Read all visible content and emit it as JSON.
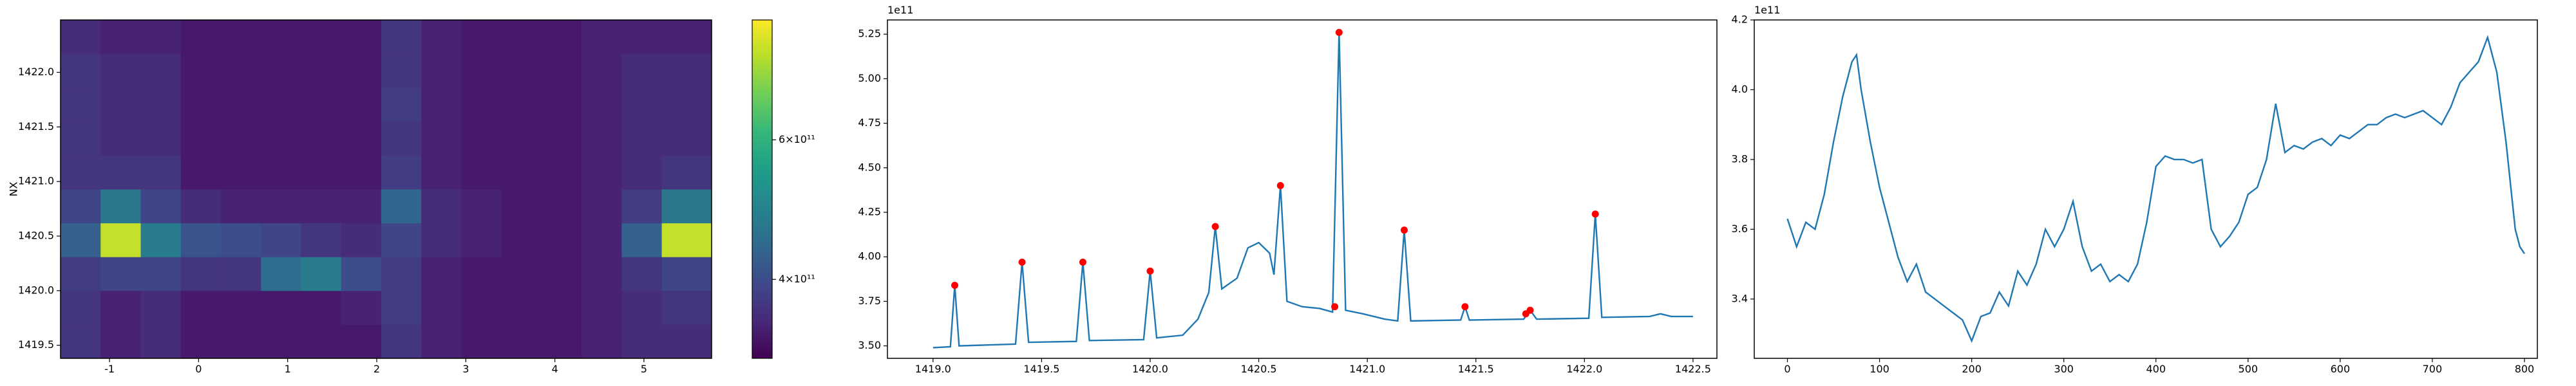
{
  "chart_data": [
    {
      "type": "heatmap",
      "ylabel": "NX",
      "colormap": "viridis",
      "x_edges": [
        -1.55,
        -1.1,
        -0.65,
        -0.2,
        0.25,
        0.7,
        1.15,
        1.6,
        2.05,
        2.5,
        2.95,
        3.4,
        3.85,
        4.3,
        4.75,
        5.2,
        5.76
      ],
      "y_edges": [
        1419.38,
        1419.69,
        1420.0,
        1420.31,
        1420.62,
        1420.93,
        1421.24,
        1421.55,
        1421.86,
        1422.17,
        1422.48
      ],
      "z": [
        [
          370000000000.0,
          350000000000.0,
          360000000000.0,
          340000000000.0,
          340000000000.0,
          340000000000.0,
          340000000000.0,
          340000000000.0,
          370000000000.0,
          350000000000.0,
          340000000000.0,
          340000000000.0,
          340000000000.0,
          350000000000.0,
          360000000000.0,
          360000000000.0
        ],
        [
          370000000000.0,
          350000000000.0,
          360000000000.0,
          340000000000.0,
          340000000000.0,
          340000000000.0,
          340000000000.0,
          350000000000.0,
          380000000000.0,
          350000000000.0,
          340000000000.0,
          340000000000.0,
          340000000000.0,
          350000000000.0,
          360000000000.0,
          370000000000.0
        ],
        [
          380000000000.0,
          390000000000.0,
          390000000000.0,
          370000000000.0,
          370000000000.0,
          450000000000.0,
          480000000000.0,
          400000000000.0,
          380000000000.0,
          350000000000.0,
          340000000000.0,
          340000000000.0,
          340000000000.0,
          350000000000.0,
          370000000000.0,
          390000000000.0
        ],
        [
          430000000000.0,
          780000000000.0,
          480000000000.0,
          410000000000.0,
          400000000000.0,
          390000000000.0,
          370000000000.0,
          360000000000.0,
          390000000000.0,
          360000000000.0,
          350000000000.0,
          340000000000.0,
          340000000000.0,
          350000000000.0,
          430000000000.0,
          780000000000.0
        ],
        [
          390000000000.0,
          470000000000.0,
          390000000000.0,
          360000000000.0,
          350000000000.0,
          350000000000.0,
          350000000000.0,
          350000000000.0,
          440000000000.0,
          360000000000.0,
          350000000000.0,
          340000000000.0,
          340000000000.0,
          350000000000.0,
          380000000000.0,
          470000000000.0
        ],
        [
          370000000000.0,
          370000000000.0,
          370000000000.0,
          340000000000.0,
          340000000000.0,
          340000000000.0,
          340000000000.0,
          340000000000.0,
          380000000000.0,
          350000000000.0,
          340000000000.0,
          340000000000.0,
          340000000000.0,
          350000000000.0,
          360000000000.0,
          370000000000.0
        ],
        [
          370000000000.0,
          360000000000.0,
          360000000000.0,
          340000000000.0,
          340000000000.0,
          340000000000.0,
          340000000000.0,
          340000000000.0,
          370000000000.0,
          350000000000.0,
          340000000000.0,
          340000000000.0,
          340000000000.0,
          350000000000.0,
          360000000000.0,
          360000000000.0
        ],
        [
          370000000000.0,
          360000000000.0,
          360000000000.0,
          340000000000.0,
          340000000000.0,
          340000000000.0,
          340000000000.0,
          340000000000.0,
          380000000000.0,
          350000000000.0,
          340000000000.0,
          340000000000.0,
          340000000000.0,
          350000000000.0,
          360000000000.0,
          360000000000.0
        ],
        [
          370000000000.0,
          360000000000.0,
          360000000000.0,
          340000000000.0,
          340000000000.0,
          340000000000.0,
          340000000000.0,
          340000000000.0,
          370000000000.0,
          350000000000.0,
          340000000000.0,
          340000000000.0,
          340000000000.0,
          350000000000.0,
          360000000000.0,
          360000000000.0
        ],
        [
          360000000000.0,
          350000000000.0,
          350000000000.0,
          340000000000.0,
          340000000000.0,
          340000000000.0,
          340000000000.0,
          340000000000.0,
          370000000000.0,
          350000000000.0,
          340000000000.0,
          340000000000.0,
          340000000000.0,
          350000000000.0,
          350000000000.0,
          350000000000.0
        ]
      ],
      "xlim": [
        -1.55,
        5.76
      ],
      "ylim": [
        1419.38,
        1422.48
      ],
      "xticks": [
        -1,
        0,
        1,
        2,
        3,
        4,
        5
      ],
      "yticks": [
        1419.5,
        {
          "value": 1420.0,
          "label": "1420.0"
        },
        1420.5,
        {
          "value": 1421.0,
          "label": "1421.0"
        },
        1421.5,
        {
          "value": 1422.0,
          "label": "1422.0"
        }
      ],
      "colorbar": {
        "clim": [
          318000000000.0,
          850000000000.0
        ],
        "log": true,
        "ticks": [
          {
            "value": 400000000000.0,
            "label": "4×10¹¹"
          },
          {
            "value": 600000000000.0,
            "label": "6×10¹¹"
          }
        ]
      }
    },
    {
      "type": "line",
      "y_offset_label": "1e11",
      "xlim": [
        1418.79,
        1422.61
      ],
      "ylim": [
        3.43,
        5.33
      ],
      "xticks": [
        {
          "value": 1419.0,
          "label": "1419.0"
        },
        1419.5,
        {
          "value": 1420.0,
          "label": "1420.0"
        },
        1420.5,
        {
          "value": 1421.0,
          "label": "1421.0"
        },
        1421.5,
        {
          "value": 1422.0,
          "label": "1422.0"
        },
        1422.5
      ],
      "yticks": [
        {
          "value": 3.5,
          "label": "3.50"
        },
        3.75,
        {
          "value": 4.0,
          "label": "4.00"
        },
        4.25,
        {
          "value": 4.5,
          "label": "4.50"
        },
        4.75,
        {
          "value": 5.0,
          "label": "5.00"
        },
        5.25
      ],
      "series": [
        {
          "color": "#1f77b4",
          "line": true,
          "x": [
            1419.0,
            1419.08,
            1419.1,
            1419.12,
            1419.38,
            1419.41,
            1419.44,
            1419.66,
            1419.69,
            1419.72,
            1419.97,
            1420.0,
            1420.03,
            1420.15,
            1420.22,
            1420.27,
            1420.3,
            1420.33,
            1420.4,
            1420.45,
            1420.5,
            1420.55,
            1420.57,
            1420.6,
            1420.63,
            1420.7,
            1420.78,
            1420.84,
            1420.87,
            1420.9,
            1420.98,
            1421.08,
            1421.14,
            1421.17,
            1421.2,
            1421.43,
            1421.45,
            1421.47,
            1421.72,
            1421.75,
            1421.78,
            1422.02,
            1422.05,
            1422.08,
            1422.3,
            1422.35,
            1422.4,
            1422.5
          ],
          "values": [
            3.49,
            3.495,
            3.84,
            3.5,
            3.51,
            3.97,
            3.52,
            3.525,
            3.97,
            3.53,
            3.535,
            3.92,
            3.545,
            3.56,
            3.65,
            3.8,
            4.17,
            3.82,
            3.88,
            4.05,
            4.08,
            4.02,
            3.9,
            4.4,
            3.75,
            3.72,
            3.71,
            3.69,
            5.26,
            3.7,
            3.68,
            3.65,
            3.64,
            4.15,
            3.64,
            3.645,
            3.72,
            3.645,
            3.65,
            3.7,
            3.65,
            3.655,
            4.24,
            3.66,
            3.665,
            3.68,
            3.665,
            3.665
          ]
        },
        {
          "color": "#ff0000",
          "line": false,
          "marker": "o",
          "x": [
            1419.1,
            1419.41,
            1419.69,
            1420.0,
            1420.3,
            1420.6,
            1420.85,
            1420.87,
            1421.17,
            1421.45,
            1421.73,
            1421.75,
            1422.05
          ],
          "values": [
            3.84,
            3.97,
            3.97,
            3.92,
            4.17,
            4.4,
            3.72,
            5.26,
            4.15,
            3.72,
            3.68,
            3.7,
            4.24
          ]
        }
      ]
    },
    {
      "type": "line",
      "y_offset_label": "1e11",
      "xlim": [
        -36,
        814
      ],
      "ylim": [
        3.23,
        4.2
      ],
      "xticks": [
        0,
        100,
        200,
        300,
        400,
        500,
        600,
        700,
        800
      ],
      "yticks": [
        3.4,
        3.6,
        3.8,
        {
          "value": 4.0,
          "label": "4.0"
        },
        4.2
      ],
      "series": [
        {
          "color": "#1f77b4",
          "line": true,
          "x": [
            0,
            10,
            20,
            30,
            40,
            50,
            60,
            70,
            75,
            80,
            90,
            100,
            110,
            120,
            130,
            140,
            150,
            160,
            170,
            180,
            190,
            200,
            210,
            220,
            230,
            240,
            250,
            260,
            270,
            280,
            290,
            300,
            310,
            320,
            330,
            340,
            350,
            360,
            370,
            380,
            390,
            400,
            410,
            420,
            430,
            440,
            450,
            460,
            470,
            480,
            490,
            500,
            510,
            520,
            530,
            540,
            550,
            560,
            570,
            580,
            590,
            600,
            610,
            620,
            630,
            640,
            650,
            660,
            670,
            680,
            690,
            700,
            710,
            720,
            730,
            740,
            750,
            760,
            770,
            780,
            790,
            795,
            800
          ],
          "values": [
            3.63,
            3.55,
            3.62,
            3.6,
            3.7,
            3.85,
            3.98,
            4.08,
            4.1,
            4.0,
            3.85,
            3.72,
            3.62,
            3.52,
            3.45,
            3.5,
            3.42,
            3.4,
            3.38,
            3.36,
            3.34,
            3.28,
            3.35,
            3.36,
            3.42,
            3.38,
            3.48,
            3.44,
            3.5,
            3.6,
            3.55,
            3.6,
            3.68,
            3.55,
            3.48,
            3.5,
            3.45,
            3.47,
            3.45,
            3.5,
            3.62,
            3.78,
            3.81,
            3.8,
            3.8,
            3.79,
            3.8,
            3.6,
            3.55,
            3.58,
            3.62,
            3.7,
            3.72,
            3.8,
            3.96,
            3.82,
            3.84,
            3.83,
            3.85,
            3.86,
            3.84,
            3.87,
            3.86,
            3.88,
            3.9,
            3.9,
            3.92,
            3.93,
            3.92,
            3.93,
            3.94,
            3.92,
            3.9,
            3.95,
            4.02,
            4.05,
            4.08,
            4.15,
            4.05,
            3.85,
            3.6,
            3.55,
            3.53
          ]
        }
      ]
    }
  ]
}
